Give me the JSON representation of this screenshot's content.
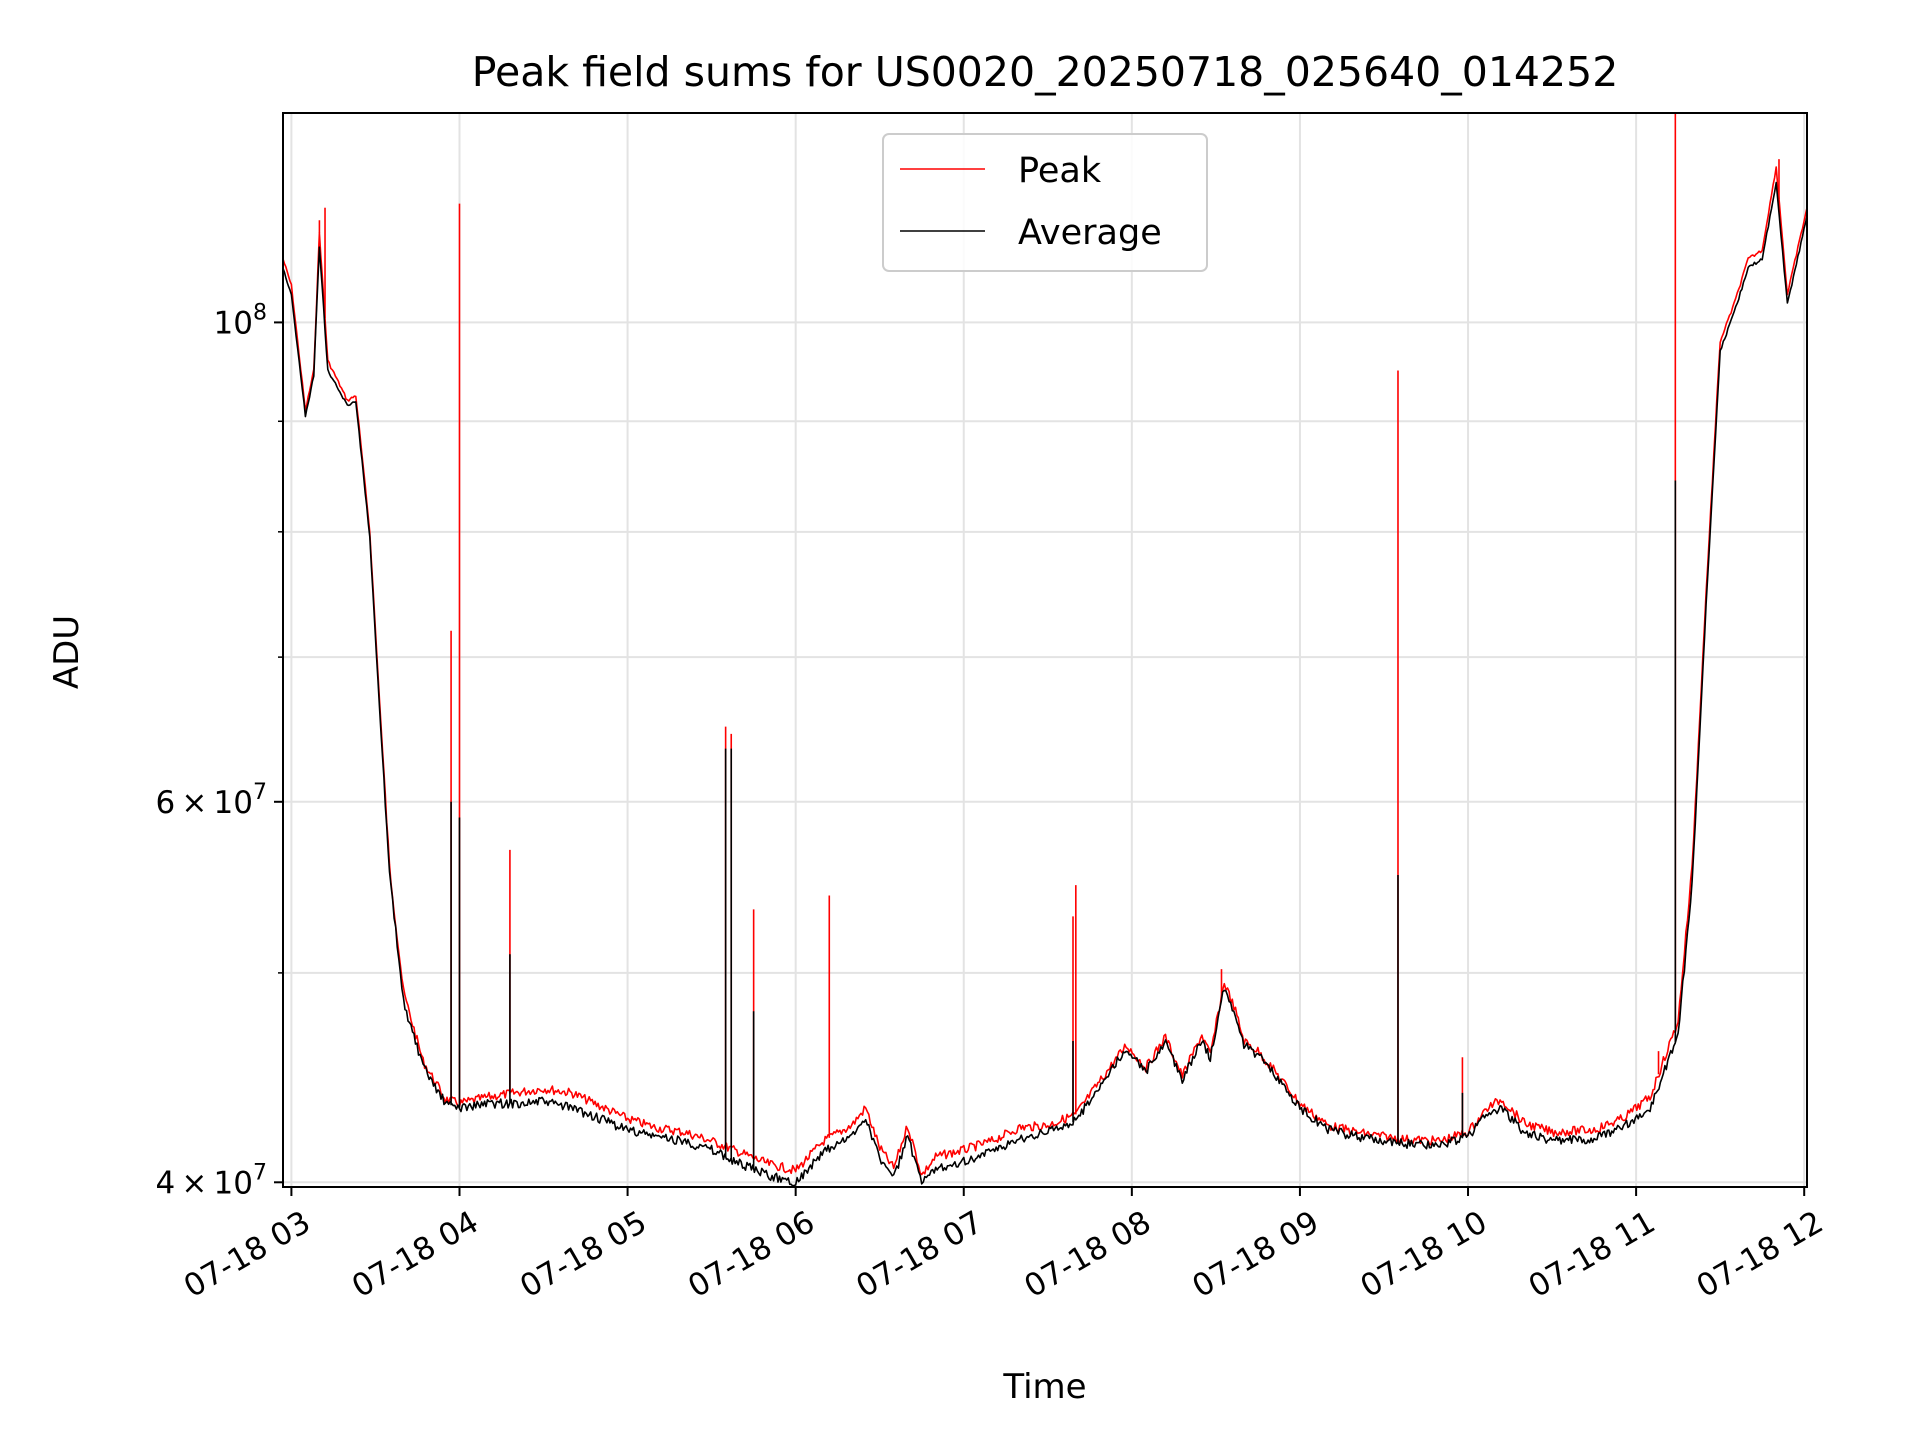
{
  "chart_data": {
    "type": "line",
    "title": "Peak field sums for US0020_20250718_025640_014252",
    "xlabel": "Time",
    "ylabel": "ADU",
    "x_scale": "time",
    "y_scale": "log",
    "xlim": [
      "07-18 02:57",
      "07-18 12:01"
    ],
    "ylim": [
      39800000,
      125000000
    ],
    "x_ticks": [
      "07-18 03",
      "07-18 04",
      "07-18 05",
      "07-18 06",
      "07-18 07",
      "07-18 08",
      "07-18 09",
      "07-18 10",
      "07-18 11",
      "07-18 12"
    ],
    "y_ticks": [
      {
        "value": 40000000,
        "mantissa": "4",
        "exponent": "7"
      },
      {
        "value": 60000000,
        "mantissa": "6",
        "exponent": "7"
      },
      {
        "value": 100000000,
        "mantissa": "",
        "exponent": "8"
      }
    ],
    "grid": true,
    "legend_position": "top-center",
    "series": [
      {
        "name": "Peak",
        "color": "#ff0000",
        "points": [
          [
            "07-18 02:57",
            107000000
          ],
          [
            "07-18 03:00",
            104000000
          ],
          [
            "07-18 03:05",
            91000000
          ],
          [
            "07-18 03:08",
            95000000
          ],
          [
            "07-18 03:10",
            110000000
          ],
          [
            "07-18 03:13",
            96000000
          ],
          [
            "07-18 03:20",
            92000000
          ],
          [
            "07-18 03:23",
            92500000
          ],
          [
            "07-18 03:28",
            80000000
          ],
          [
            "07-18 03:32",
            65000000
          ],
          [
            "07-18 03:35",
            56000000
          ],
          [
            "07-18 03:40",
            49000000
          ],
          [
            "07-18 03:47",
            45500000
          ],
          [
            "07-18 03:55",
            43700000
          ],
          [
            "07-18 04:00",
            43500000
          ],
          [
            "07-18 04:10",
            43800000
          ],
          [
            "07-18 04:20",
            44000000
          ],
          [
            "07-18 04:30",
            44200000
          ],
          [
            "07-18 04:40",
            44000000
          ],
          [
            "07-18 04:50",
            43400000
          ],
          [
            "07-18 05:00",
            42800000
          ],
          [
            "07-18 05:10",
            42400000
          ],
          [
            "07-18 05:20",
            42200000
          ],
          [
            "07-18 05:30",
            41800000
          ],
          [
            "07-18 05:40",
            41300000
          ],
          [
            "07-18 05:50",
            40800000
          ],
          [
            "07-18 06:00",
            40500000
          ],
          [
            "07-18 06:10",
            41800000
          ],
          [
            "07-18 06:20",
            42500000
          ],
          [
            "07-18 06:25",
            43300000
          ],
          [
            "07-18 06:30",
            41500000
          ],
          [
            "07-18 06:35",
            40600000
          ],
          [
            "07-18 06:40",
            42500000
          ],
          [
            "07-18 06:45",
            40300000
          ],
          [
            "07-18 06:50",
            41100000
          ],
          [
            "07-18 07:00",
            41400000
          ],
          [
            "07-18 07:10",
            41800000
          ],
          [
            "07-18 07:20",
            42400000
          ],
          [
            "07-18 07:30",
            42500000
          ],
          [
            "07-18 07:40",
            43000000
          ],
          [
            "07-18 07:50",
            44800000
          ],
          [
            "07-18 07:58",
            46300000
          ],
          [
            "07-18 08:05",
            45200000
          ],
          [
            "07-18 08:12",
            46700000
          ],
          [
            "07-18 08:18",
            44800000
          ],
          [
            "07-18 08:25",
            46800000
          ],
          [
            "07-18 08:28",
            45800000
          ],
          [
            "07-18 08:33",
            49500000
          ],
          [
            "07-18 08:37",
            48000000
          ],
          [
            "07-18 08:40",
            46500000
          ],
          [
            "07-18 08:45",
            46000000
          ],
          [
            "07-18 08:50",
            45200000
          ],
          [
            "07-18 09:00",
            43500000
          ],
          [
            "07-18 09:10",
            42500000
          ],
          [
            "07-18 09:20",
            42200000
          ],
          [
            "07-18 09:35",
            41900000
          ],
          [
            "07-18 09:50",
            41800000
          ],
          [
            "07-18 10:00",
            42200000
          ],
          [
            "07-18 10:07",
            43300000
          ],
          [
            "07-18 10:12",
            43700000
          ],
          [
            "07-18 10:20",
            42600000
          ],
          [
            "07-18 10:30",
            42200000
          ],
          [
            "07-18 10:45",
            42300000
          ],
          [
            "07-18 10:55",
            42800000
          ],
          [
            "07-18 11:05",
            43800000
          ],
          [
            "07-18 11:15",
            47500000
          ],
          [
            "07-18 11:20",
            56000000
          ],
          [
            "07-18 11:25",
            75000000
          ],
          [
            "07-18 11:30",
            98000000
          ],
          [
            "07-18 11:35",
            102000000
          ],
          [
            "07-18 11:40",
            107000000
          ],
          [
            "07-18 11:45",
            108000000
          ],
          [
            "07-18 11:50",
            118000000
          ],
          [
            "07-18 11:54",
            103000000
          ],
          [
            "07-18 12:01",
            113000000
          ]
        ],
        "spikes": [
          [
            "07-18 03:10",
            111500000
          ],
          [
            "07-18 03:12",
            113000000
          ],
          [
            "07-18 03:57",
            72000000
          ],
          [
            "07-18 04:00",
            113500000
          ],
          [
            "07-18 04:18",
            57000000
          ],
          [
            "07-18 05:35",
            65000000
          ],
          [
            "07-18 05:37",
            64500000
          ],
          [
            "07-18 05:45",
            53500000
          ],
          [
            "07-18 06:12",
            54300000
          ],
          [
            "07-18 07:39",
            53100000
          ],
          [
            "07-18 07:40",
            54900000
          ],
          [
            "07-18 08:32",
            50200000
          ],
          [
            "07-18 09:35",
            95000000
          ],
          [
            "07-18 09:58",
            45700000
          ],
          [
            "07-18 11:08",
            46000000
          ],
          [
            "07-18 11:14",
            125000000
          ],
          [
            "07-18 11:51",
            119000000
          ]
        ]
      },
      {
        "name": "Average",
        "color": "#000000",
        "points": [
          [
            "07-18 02:57",
            106000000
          ],
          [
            "07-18 03:00",
            103000000
          ],
          [
            "07-18 03:05",
            90500000
          ],
          [
            "07-18 03:08",
            94500000
          ],
          [
            "07-18 03:10",
            108500000
          ],
          [
            "07-18 03:13",
            95000000
          ],
          [
            "07-18 03:20",
            91500000
          ],
          [
            "07-18 03:23",
            92000000
          ],
          [
            "07-18 03:28",
            79500000
          ],
          [
            "07-18 03:32",
            64500000
          ],
          [
            "07-18 03:35",
            55500000
          ],
          [
            "07-18 03:40",
            48500000
          ],
          [
            "07-18 03:47",
            45200000
          ],
          [
            "07-18 03:55",
            43500000
          ],
          [
            "07-18 04:00",
            43300000
          ],
          [
            "07-18 04:10",
            43500000
          ],
          [
            "07-18 04:20",
            43500000
          ],
          [
            "07-18 04:30",
            43600000
          ],
          [
            "07-18 04:40",
            43300000
          ],
          [
            "07-18 04:50",
            42800000
          ],
          [
            "07-18 05:00",
            42300000
          ],
          [
            "07-18 05:10",
            42000000
          ],
          [
            "07-18 05:20",
            41800000
          ],
          [
            "07-18 05:30",
            41400000
          ],
          [
            "07-18 05:40",
            40800000
          ],
          [
            "07-18 05:50",
            40300000
          ],
          [
            "07-18 06:00",
            40000000
          ],
          [
            "07-18 06:10",
            41300000
          ],
          [
            "07-18 06:20",
            42000000
          ],
          [
            "07-18 06:25",
            42900000
          ],
          [
            "07-18 06:30",
            41000000
          ],
          [
            "07-18 06:35",
            40200000
          ],
          [
            "07-18 06:40",
            42000000
          ],
          [
            "07-18 06:45",
            39900000
          ],
          [
            "07-18 06:50",
            40600000
          ],
          [
            "07-18 07:00",
            40900000
          ],
          [
            "07-18 07:10",
            41300000
          ],
          [
            "07-18 07:20",
            41900000
          ],
          [
            "07-18 07:30",
            42200000
          ],
          [
            "07-18 07:40",
            42700000
          ],
          [
            "07-18 07:50",
            44600000
          ],
          [
            "07-18 07:58",
            46100000
          ],
          [
            "07-18 08:05",
            45000000
          ],
          [
            "07-18 08:12",
            46500000
          ],
          [
            "07-18 08:18",
            44600000
          ],
          [
            "07-18 08:25",
            46600000
          ],
          [
            "07-18 08:28",
            45600000
          ],
          [
            "07-18 08:33",
            49200000
          ],
          [
            "07-18 08:37",
            47800000
          ],
          [
            "07-18 08:40",
            46300000
          ],
          [
            "07-18 08:45",
            45800000
          ],
          [
            "07-18 08:50",
            45000000
          ],
          [
            "07-18 09:00",
            43300000
          ],
          [
            "07-18 09:10",
            42300000
          ],
          [
            "07-18 09:20",
            42000000
          ],
          [
            "07-18 09:35",
            41700000
          ],
          [
            "07-18 09:50",
            41600000
          ],
          [
            "07-18 10:00",
            42000000
          ],
          [
            "07-18 10:07",
            43000000
          ],
          [
            "07-18 10:12",
            43300000
          ],
          [
            "07-18 10:20",
            42200000
          ],
          [
            "07-18 10:30",
            41800000
          ],
          [
            "07-18 10:45",
            41900000
          ],
          [
            "07-18 10:55",
            42400000
          ],
          [
            "07-18 11:05",
            43300000
          ],
          [
            "07-18 11:15",
            46800000
          ],
          [
            "07-18 11:20",
            55000000
          ],
          [
            "07-18 11:25",
            74000000
          ],
          [
            "07-18 11:30",
            97000000
          ],
          [
            "07-18 11:35",
            101000000
          ],
          [
            "07-18 11:40",
            106000000
          ],
          [
            "07-18 11:45",
            107000000
          ],
          [
            "07-18 11:50",
            116000000
          ],
          [
            "07-18 11:54",
            102000000
          ],
          [
            "07-18 12:01",
            112000000
          ]
        ],
        "spikes": [
          [
            "07-18 03:57",
            60000000
          ],
          [
            "07-18 04:00",
            59000000
          ],
          [
            "07-18 04:18",
            51000000
          ],
          [
            "07-18 05:35",
            63500000
          ],
          [
            "07-18 05:37",
            63500000
          ],
          [
            "07-18 05:45",
            48000000
          ],
          [
            "07-18 07:39",
            46500000
          ],
          [
            "07-18 09:35",
            55500000
          ],
          [
            "07-18 09:58",
            44000000
          ],
          [
            "07-18 11:14",
            84500000
          ]
        ]
      }
    ]
  }
}
